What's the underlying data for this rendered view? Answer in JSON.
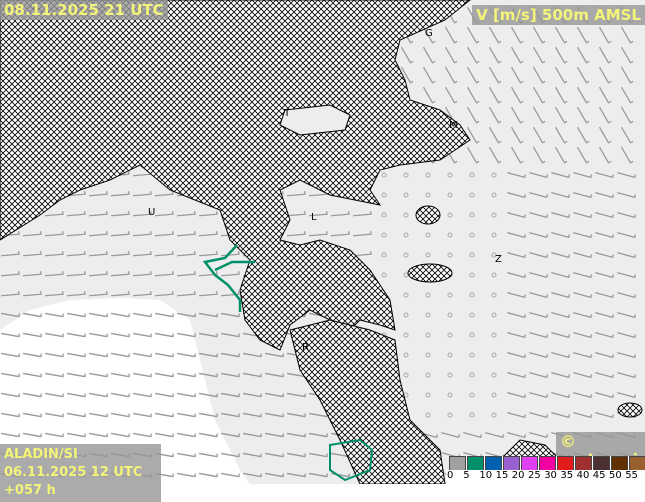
{
  "header": {
    "valid_time": "08.11.2025 21 UTC",
    "variable": "V [m/s] 500m AMSL"
  },
  "footer": {
    "model": "ALADIN/SI",
    "run": "06.11.2025 12 UTC +057 h",
    "copyright": "© meteo.si"
  },
  "legend": {
    "ticks": [
      "0",
      "5",
      "10",
      "15",
      "20",
      "25",
      "30",
      "35",
      "40",
      "45",
      "50",
      "55"
    ],
    "colors": [
      "#a0a0a0",
      "#00906a",
      "#0060b0",
      "#9a60d0",
      "#e040f0",
      "#f000a0",
      "#e01c1c",
      "#a03030",
      "#4a3030",
      "#603000",
      "#986030",
      "#b8a070"
    ]
  },
  "cities": [
    {
      "label": "G"
    },
    {
      "label": "T"
    },
    {
      "label": "M"
    },
    {
      "label": "U"
    },
    {
      "label": "L"
    },
    {
      "label": "Z"
    },
    {
      "label": "R"
    }
  ]
}
